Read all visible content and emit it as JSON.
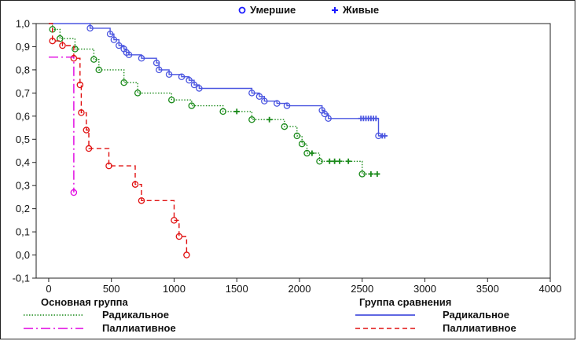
{
  "chart_data": {
    "type": "line",
    "title": "",
    "xlabel": "",
    "ylabel": "",
    "xlim": [
      -100,
      4000
    ],
    "ylim": [
      -0.1,
      1.0
    ],
    "x_ticks": [
      0,
      500,
      1000,
      1500,
      2000,
      2500,
      3000,
      3500,
      4000
    ],
    "y_ticks": [
      -0.1,
      0.0,
      0.1,
      0.2,
      0.3,
      0.4,
      0.5,
      0.6,
      0.7,
      0.8,
      0.9,
      1.0
    ],
    "y_tick_labels": [
      "-0,1",
      "0,0",
      "0,1",
      "0,2",
      "0,3",
      "0,4",
      "0,5",
      "0,6",
      "0,7",
      "0,8",
      "0,9",
      "1,0"
    ],
    "grid": false,
    "marker_legend": {
      "placement": "top-center",
      "items": [
        {
          "symbol": "circle",
          "label": "Умершие",
          "color": "#1a1aff"
        },
        {
          "symbol": "plus",
          "label": "Живые",
          "color": "#1a1aff"
        }
      ]
    },
    "group_legends": [
      {
        "title": "Основная группа",
        "items": [
          {
            "label": "Радикальное",
            "color": "#1a8a1a",
            "dash": "dotted"
          },
          {
            "label": "Паллиативное",
            "color": "#e000e0",
            "dash": "dashdot"
          }
        ]
      },
      {
        "title": "Группа сравнения",
        "items": [
          {
            "label": "Радикальное",
            "color": "#2a35d8",
            "dash": "solid"
          },
          {
            "label": "Паллиативное",
            "color": "#e01010",
            "dash": "dashed"
          }
        ]
      }
    ],
    "series": [
      {
        "group": "Группа сравнения",
        "treatment": "Радикальное",
        "color": "#4a55e0",
        "dash": "solid",
        "start": [
          0,
          1.0
        ],
        "steps": [
          [
            330,
            0.98
          ],
          [
            490,
            0.955
          ],
          [
            520,
            0.93
          ],
          [
            560,
            0.905
          ],
          [
            600,
            0.89
          ],
          [
            620,
            0.875
          ],
          [
            640,
            0.865
          ],
          [
            740,
            0.85
          ],
          [
            860,
            0.83
          ],
          [
            880,
            0.8
          ],
          [
            960,
            0.78
          ],
          [
            1060,
            0.77
          ],
          [
            1120,
            0.755
          ],
          [
            1160,
            0.735
          ],
          [
            1200,
            0.72
          ],
          [
            1620,
            0.7
          ],
          [
            1680,
            0.685
          ],
          [
            1720,
            0.665
          ],
          [
            1820,
            0.655
          ],
          [
            1900,
            0.645
          ],
          [
            2180,
            0.625
          ],
          [
            2200,
            0.61
          ],
          [
            2230,
            0.59
          ],
          [
            2630,
            0.515
          ]
        ],
        "end_x": 2700,
        "censored": [
          [
            2490,
            0.59
          ],
          [
            2510,
            0.59
          ],
          [
            2530,
            0.59
          ],
          [
            2550,
            0.59
          ],
          [
            2570,
            0.59
          ],
          [
            2590,
            0.59
          ],
          [
            2610,
            0.59
          ],
          [
            2660,
            0.515
          ],
          [
            2680,
            0.515
          ]
        ]
      },
      {
        "group": "Основная группа",
        "treatment": "Радикальное",
        "color": "#1a8a1a",
        "dash": "dotted",
        "start": [
          0,
          1.0
        ],
        "steps": [
          [
            30,
            0.975
          ],
          [
            90,
            0.935
          ],
          [
            210,
            0.89
          ],
          [
            360,
            0.845
          ],
          [
            400,
            0.8
          ],
          [
            600,
            0.745
          ],
          [
            710,
            0.7
          ],
          [
            980,
            0.67
          ],
          [
            1140,
            0.645
          ],
          [
            1390,
            0.62
          ],
          [
            1620,
            0.585
          ],
          [
            1880,
            0.555
          ],
          [
            1980,
            0.515
          ],
          [
            2020,
            0.48
          ],
          [
            2060,
            0.44
          ],
          [
            2160,
            0.405
          ],
          [
            2500,
            0.35
          ]
        ],
        "end_x": 2620,
        "censored": [
          [
            1500,
            0.62
          ],
          [
            1760,
            0.585
          ],
          [
            2100,
            0.44
          ],
          [
            2240,
            0.405
          ],
          [
            2280,
            0.405
          ],
          [
            2320,
            0.405
          ],
          [
            2390,
            0.405
          ],
          [
            2570,
            0.35
          ],
          [
            2620,
            0.35
          ]
        ]
      },
      {
        "group": "Группа сравнения",
        "treatment": "Паллиативное",
        "color": "#e01010",
        "dash": "dashed",
        "start": [
          0,
          1.0
        ],
        "steps": [
          [
            30,
            0.925
          ],
          [
            110,
            0.905
          ],
          [
            200,
            0.85
          ],
          [
            250,
            0.735
          ],
          [
            260,
            0.615
          ],
          [
            300,
            0.54
          ],
          [
            320,
            0.46
          ],
          [
            480,
            0.385
          ],
          [
            690,
            0.305
          ],
          [
            740,
            0.235
          ],
          [
            1000,
            0.15
          ],
          [
            1040,
            0.08
          ],
          [
            1100,
            0.0
          ]
        ],
        "end_x": 1100,
        "censored": []
      },
      {
        "group": "Основная группа",
        "treatment": "Паллиативное",
        "color": "#e000e0",
        "dash": "dashdot",
        "start": [
          0,
          0.855
        ],
        "steps": [
          [
            200,
            0.27
          ]
        ],
        "end_x": 200,
        "censored": []
      }
    ]
  }
}
